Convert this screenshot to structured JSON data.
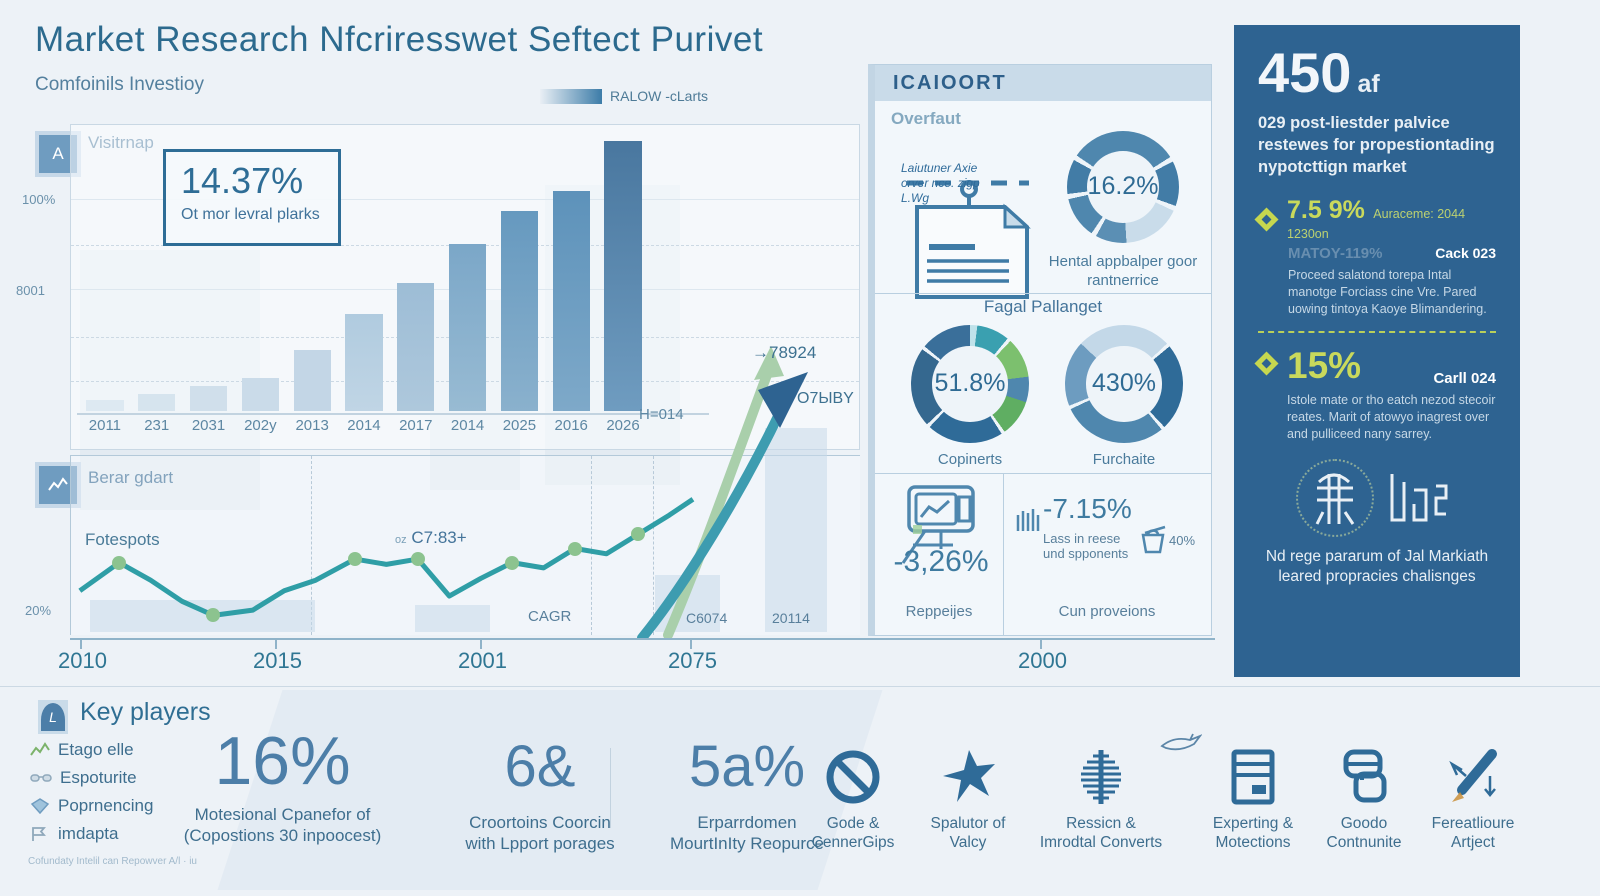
{
  "colors": {
    "primary": "#2c6a8e",
    "accent_green": "#c6d74f",
    "sidebar_bg": "#2e6391",
    "teal_line": "#2f9ea6",
    "bar_dark": "#4c7ea8"
  },
  "header": {
    "title": "Market Research Nfcriresswet Seftect Purivet",
    "subtitle": "Comfoinils Investioy",
    "legend_label": "RALOW -cLarts"
  },
  "bar_section": {
    "icon_letter": "A",
    "label": "Visitrnap",
    "callout_value": "14.37%",
    "callout_caption": "Ot mor levral plarks",
    "y_tick_top": "100%",
    "y_tick_mid": "8001",
    "annotation": "H=014"
  },
  "line_section": {
    "label": "Berar gdart",
    "series_label": "Fotespots",
    "point_prefix": "oz",
    "point_label": "C7:83+",
    "y_tick": "20%",
    "cagr_label": "CAGR",
    "col_label_1": "C6074",
    "col_label_2": "20114",
    "arrow_value": "→78924",
    "arrow_caption": "O7ЫBY"
  },
  "timeline": {
    "t0": "2010",
    "t1": "2015",
    "t2": "2001",
    "t3": "2075",
    "t4": "2000"
  },
  "middle_panel": {
    "header": "ICAIOORT",
    "subheader": "Overfaut",
    "doc_note": "Laiutuner Axie\norver nce. zigp\nL.Wg",
    "donut_overview": {
      "value": "16.2%",
      "caption": "Hental appbalper goor rantnerrice"
    },
    "section_title": "Fagal Pallanget",
    "donut_left": {
      "value": "51.8%",
      "caption": "Copinerts"
    },
    "donut_right": {
      "value": "430%",
      "caption": "Furchaite"
    },
    "stat_left": {
      "value": "-3,26%",
      "caption": "Reppeijes"
    },
    "stat_right": {
      "value": "-7.15%",
      "sub": "Lass in reese\nund spponents",
      "pct": "40%",
      "caption": "Cun proveions"
    }
  },
  "sidebar": {
    "big_value": "450",
    "big_suffix": "af",
    "intro": "029 post-liestder palvice restewes for propestiontading nypotcttign market",
    "stat1": {
      "value": "7.5 9%",
      "note": "Auraceme: 2044 1230on",
      "ghost": "MATOY-119%",
      "tag": "Cack 023",
      "body": "Proceed salatond torepa Intal manotge Forciass cine Vre. Pared uowing tintoya Kaoye Blimandering."
    },
    "stat2": {
      "value": "15%",
      "tag": "Carll 024",
      "body": "Istole mate or tho eatch nezod stecoir reates. Marit of atowyo inagrest over and pulliceed nany sarrey."
    },
    "caption": "Nd rege pararum of Jal Markiath\nleared propracies chalisnges"
  },
  "key_players": {
    "heading": "Key players",
    "items": [
      {
        "label": "Etago elle"
      },
      {
        "label": "Espoturite"
      },
      {
        "label": "Poprnencing"
      },
      {
        "label": "imdapta"
      }
    ],
    "stats": [
      {
        "value": "16%",
        "caption": "Motesional Cpanefor of\n(Copostions 30 inpoocest)"
      },
      {
        "value": "6&",
        "caption": "Croortoins Coorcin\nwith Lpport porages"
      },
      {
        "value": "5a%",
        "caption": "Erparrdomen\nMourtInIty Reopurce"
      }
    ],
    "features": [
      {
        "icon": "no-entry",
        "label": "Gode &\nCennerGips"
      },
      {
        "icon": "plane",
        "label": "Spalutor of\nValcy"
      },
      {
        "icon": "medal",
        "label": "Ressicn &\nImrodtal Converts"
      },
      {
        "icon": "server",
        "label": "Experting &\nMotections"
      },
      {
        "icon": "cards",
        "label": "Goodo\nContnunite"
      },
      {
        "icon": "pen",
        "label": "Fereatlioure\nArtject"
      }
    ],
    "footnote": "Cofundaty Intelil can Repowver A/l · iu"
  },
  "chart_data": [
    {
      "type": "bar",
      "title": "Visitrnap",
      "categories": [
        "2011",
        "231",
        "2031",
        "202y",
        "2013",
        "2014",
        "2017",
        "2014",
        "2025",
        "2016",
        "2026"
      ],
      "values": [
        4,
        6,
        9,
        12,
        22,
        35,
        46,
        60,
        72,
        79,
        97
      ],
      "ylim": [
        0,
        100
      ],
      "y_ticks": [
        "100%",
        "8001"
      ],
      "grid": true,
      "colors": [
        [
          "#dde9f2",
          "#dde9f2"
        ],
        [
          "#d6e4ee",
          "#d6e4ee"
        ],
        [
          "#d0dfeb",
          "#d0dfeb"
        ],
        [
          "#cadbe9",
          "#cadbe9"
        ],
        [
          "#c3d6e6",
          "#c3d6e6"
        ],
        [
          "#b0cbdf",
          "#c0d5e5"
        ],
        [
          "#9dbdd6",
          "#aec8dc"
        ],
        [
          "#7ba7c8",
          "#98bbd3"
        ],
        [
          "#6699bf",
          "#8ab1cd"
        ],
        [
          "#5d92ba",
          "#7ea9c9"
        ],
        [
          "#49779f",
          "#6f9cc0"
        ]
      ]
    },
    {
      "type": "line",
      "title": "Berar gdart",
      "series": "Fotespots",
      "line_color": "#2f9ea6",
      "dot_color": "#8cc38f",
      "points": [
        [
          1,
          76
        ],
        [
          6,
          60
        ],
        [
          10,
          70
        ],
        [
          14,
          82
        ],
        [
          18,
          90
        ],
        [
          23,
          87
        ],
        [
          27,
          76
        ],
        [
          31,
          70
        ],
        [
          36,
          58
        ],
        [
          40,
          61
        ],
        [
          44,
          58
        ],
        [
          48,
          79
        ],
        [
          52,
          69
        ],
        [
          56,
          60
        ],
        [
          60,
          63
        ],
        [
          64,
          52
        ],
        [
          68,
          55
        ],
        [
          72,
          44
        ],
        [
          76,
          33
        ],
        [
          79,
          24
        ]
      ],
      "dot_indices": [
        1,
        4,
        8,
        10,
        13,
        15,
        17
      ],
      "y_tick": "20%"
    },
    {
      "type": "pie",
      "value": 16.2,
      "label": "16.2%",
      "caption": "Hental appbalper goor rantnerrice",
      "segments": [
        [
          "#4f87ae",
          16
        ],
        [
          "#eef4f9",
          1.5
        ],
        [
          "#427ca6",
          13
        ],
        [
          "#eef4f9",
          1.5
        ],
        [
          "#c9dcea",
          17
        ],
        [
          "#5b8fb4",
          9
        ],
        [
          "#eef4f9",
          1.5
        ],
        [
          "#4f87ae",
          12
        ],
        [
          "#eef4f9",
          1.5
        ],
        [
          "#427ca6",
          10
        ],
        [
          "#eef4f9",
          1.5
        ],
        [
          "#4f87ae",
          15.5
        ]
      ]
    },
    {
      "type": "pie",
      "value": 51.8,
      "label": "51.8%",
      "caption": "Copinerts",
      "segments": [
        [
          "#bfe2ea",
          2
        ],
        [
          "#3aa0b0",
          9
        ],
        [
          "#eef4f9",
          1
        ],
        [
          "#7cc06e",
          11
        ],
        [
          "#4f87ae",
          7
        ],
        [
          "#5fae62",
          10
        ],
        [
          "#eef4f9",
          1
        ],
        [
          "#2f6b98",
          21
        ],
        [
          "#eef4f9",
          1
        ],
        [
          "#35688f",
          22
        ],
        [
          "#eef4f9",
          1
        ],
        [
          "#3a6f9a",
          14
        ]
      ]
    },
    {
      "type": "pie",
      "value": 430,
      "label": "430%",
      "caption": "Furchaite",
      "segments": [
        [
          "#c3d8e8",
          13
        ],
        [
          "#eef4f9",
          1
        ],
        [
          "#2f6b98",
          24
        ],
        [
          "#eef4f9",
          1
        ],
        [
          "#4f87ae",
          29
        ],
        [
          "#eef4f9",
          1
        ],
        [
          "#6d9cc0",
          18
        ],
        [
          "#c3d8e8",
          13
        ]
      ]
    },
    {
      "type": "bar",
      "title": "sidebar-mini",
      "values": [
        10,
        27,
        37,
        51,
        90
      ],
      "ylim": [
        0,
        100
      ],
      "colors": [
        "#d3e0ea",
        "#d3e0ea",
        "#d3e0ea",
        "#d3e0ea",
        "#dbe6ee"
      ]
    }
  ]
}
